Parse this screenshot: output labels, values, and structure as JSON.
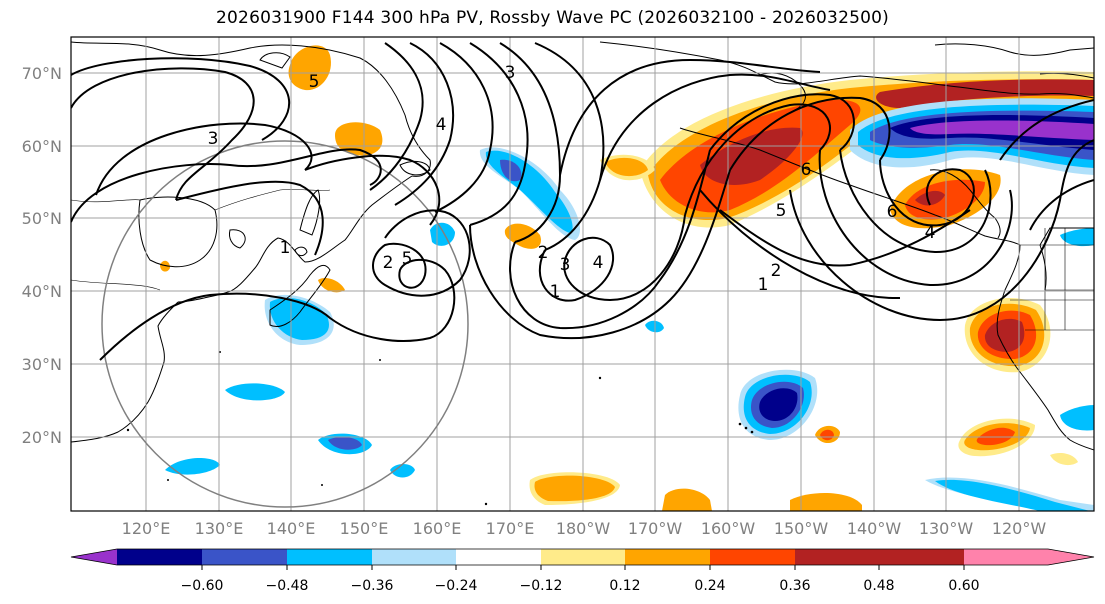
{
  "title": "2026031900 F144 300 hPa PV, Rossby Wave PC (2026032100 - 2026032500)",
  "lat_labels": [
    "70°N",
    "60°N",
    "50°N",
    "40°N",
    "30°N",
    "20°N"
  ],
  "lon_labels": [
    "120°E",
    "130°E",
    "140°E",
    "150°E",
    "160°E",
    "170°E",
    "180°W",
    "170°W",
    "160°W",
    "150°W",
    "140°W",
    "130°W",
    "120°W"
  ],
  "contour_labels": [
    "5",
    "3",
    "1",
    "2",
    "5",
    "4",
    "3",
    "2",
    "1",
    "3",
    "4",
    "6",
    "5",
    "2",
    "1",
    "6",
    "4"
  ],
  "colorbar": {
    "colors": [
      "#9932cc",
      "#00008b",
      "#3a54c8",
      "#00bfff",
      "#b0e0fa",
      "#ffffff",
      "#ffeb8a",
      "#ffa500",
      "#ff4500",
      "#b22222",
      "#ff82ab"
    ],
    "tick_labels": [
      "−0.60",
      "−0.48",
      "−0.36",
      "−0.24",
      "−0.12",
      "0.12",
      "0.24",
      "0.36",
      "0.48",
      "0.60"
    ],
    "tick_values": [
      -0.6,
      -0.48,
      -0.36,
      -0.24,
      -0.12,
      0.12,
      0.24,
      0.36,
      0.48,
      0.6
    ]
  }
}
